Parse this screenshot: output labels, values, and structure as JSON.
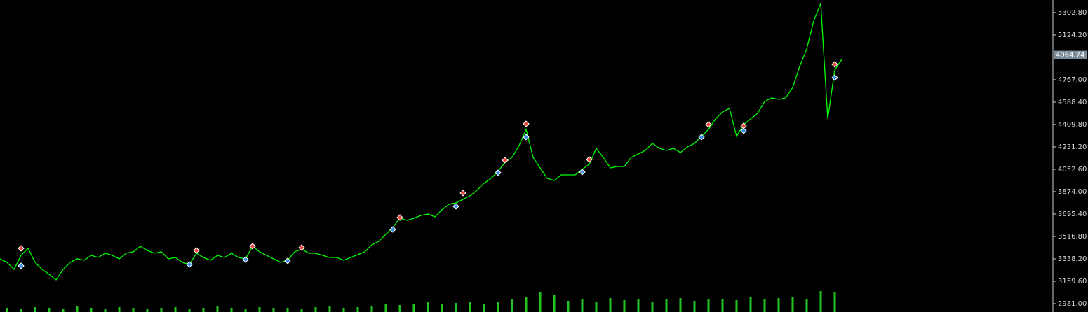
{
  "chart_data": {
    "type": "line",
    "ylim": [
      2914,
      5403
    ],
    "yticks": [
      {
        "value": 2981.0,
        "label": "2981.00"
      },
      {
        "value": 3159.6,
        "label": "3159.60"
      },
      {
        "value": 3338.2,
        "label": "3338.20"
      },
      {
        "value": 3516.8,
        "label": "3516.80"
      },
      {
        "value": 3695.4,
        "label": "3695.40"
      },
      {
        "value": 3874.0,
        "label": "3874.00"
      },
      {
        "value": 4052.6,
        "label": "4052.60"
      },
      {
        "value": 4231.2,
        "label": "4231.20"
      },
      {
        "value": 4409.8,
        "label": "4409.80"
      },
      {
        "value": 4588.4,
        "label": "4588.40"
      },
      {
        "value": 4767.0,
        "label": "4767.00"
      },
      {
        "value": 5124.2,
        "label": "5124.20"
      },
      {
        "value": 5302.8,
        "label": "5302.80"
      }
    ],
    "current_price": 4964.74,
    "series": [
      {
        "color": "#00ff00",
        "values": [
          3338.2,
          3310.3,
          3254.5,
          3366.1,
          3422.0,
          3310.3,
          3254.5,
          3215.5,
          3170.8,
          3254.5,
          3310.3,
          3338.2,
          3327.1,
          3366.1,
          3349.4,
          3382.9,
          3366.1,
          3338.2,
          3382.9,
          3394.0,
          3438.7,
          3405.2,
          3382.9,
          3394.0,
          3338.2,
          3349.4,
          3310.3,
          3293.6,
          3382.9,
          3349.4,
          3327.1,
          3366.1,
          3349.4,
          3382.9,
          3349.4,
          3338.2,
          3438.7,
          3394.0,
          3366.1,
          3338.2,
          3310.3,
          3327.1,
          3394.0,
          3416.4,
          3382.9,
          3382.9,
          3366.1,
          3349.4,
          3349.4,
          3327.1,
          3349.4,
          3371.7,
          3394.0,
          3449.9,
          3477.8,
          3533.6,
          3589.4,
          3661.9,
          3645.2,
          3661.9,
          3684.3,
          3695.4,
          3673.1,
          3728.9,
          3773.6,
          3784.7,
          3812.6,
          3840.5,
          3885.2,
          3941.0,
          3980.1,
          4035.9,
          4108.5,
          4147.5,
          4242.4,
          4370.8,
          4147.5,
          4063.8,
          3980.1,
          3963.3,
          4008.0,
          4008.0,
          4008.0,
          4052.6,
          4091.7,
          4220.1,
          4147.5,
          4063.8,
          4075.0,
          4075.0,
          4147.5,
          4175.4,
          4203.3,
          4259.1,
          4220.1,
          4203.3,
          4220.1,
          4186.6,
          4231.2,
          4259.1,
          4315.0,
          4370.8,
          4454.5,
          4510.3,
          4538.2,
          4315.0,
          4409.8,
          4454.5,
          4499.1,
          4594.0,
          4621.9,
          4610.8,
          4621.9,
          4705.6,
          4873.1,
          5012.6,
          5235.9,
          5375.4,
          4454.5,
          4845.2,
          4928.9
        ]
      }
    ],
    "sell_signals": {
      "color": "#e8463a",
      "x": [
        3,
        28,
        36,
        43,
        57,
        66,
        72,
        75,
        84,
        101,
        106,
        119
      ],
      "values": [
        3422.0,
        3405.2,
        3438.7,
        3427.5,
        3667.5,
        3862.9,
        4125.2,
        4415.4,
        4130.8,
        4409.8,
        4398.7,
        4889.8
      ]
    },
    "buy_signals": {
      "color": "#3d8fe0",
      "x": [
        3,
        27,
        35,
        41,
        56,
        65,
        71,
        75,
        83,
        100,
        106,
        119
      ],
      "values": [
        3282.5,
        3293.6,
        3332.6,
        3321.5,
        3572.6,
        3756.8,
        4024.7,
        4309.4,
        4030.3,
        4309.4,
        4359.6,
        4783.8
      ]
    },
    "volume": {
      "color": "#22c422",
      "values": [
        6,
        5,
        7,
        6,
        5,
        8,
        6,
        5,
        7,
        6,
        5,
        6,
        7,
        5,
        6,
        8,
        6,
        5,
        7,
        6,
        6,
        5,
        7,
        8,
        6,
        7,
        9,
        12,
        10,
        12,
        14,
        11,
        13,
        15,
        12,
        14,
        18,
        22,
        28,
        24,
        16,
        18,
        15,
        20,
        17,
        19,
        14,
        18,
        20,
        16,
        18,
        19,
        17,
        21,
        18,
        20,
        22,
        19,
        30,
        28
      ]
    }
  }
}
